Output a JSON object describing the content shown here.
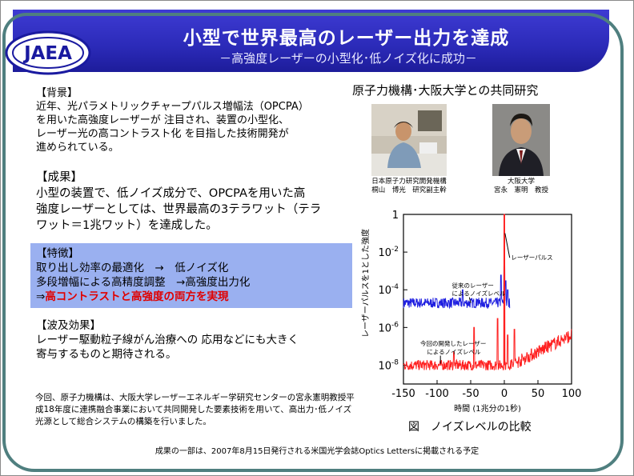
{
  "header": {
    "title": "小型で世界最高のレーザー出力を達成",
    "subtitle": "－高強度レーザーの小型化･低ノイズ化に成功－",
    "logo_text": "JAEA"
  },
  "background": {
    "heading": "【背景】",
    "lines": [
      "近年、光パラメトリックチャープパルス増幅法（OPCPA）",
      "を用いた高強度レーザーが 注目され、装置の小型化、",
      "レーザー光の高コントラスト化 を目指した技術開発が",
      "進められている。"
    ]
  },
  "results": {
    "heading": "【成果】",
    "lines": [
      "小型の装置で、低ノイズ成分で、OPCPAを用いた高",
      "強度レーザーとしては、世界最高の3テラワット（テラ",
      "ワット＝1兆ワット）を達成した。"
    ]
  },
  "features": {
    "heading": "【特徴】",
    "line1": "取り出し効率の最適化　→　低ノイズ化",
    "line2": "多段増幅による高精度調整　→高強度出力化",
    "line3_arrow": "⇒",
    "line3": "高コントラストと高強度の両方を実現"
  },
  "impact": {
    "heading": "【波及効果】",
    "lines": [
      "レーザー駆動粒子線がん治療への 応用などにも大きく",
      "寄与するものと期待される。"
    ]
  },
  "bottom_text": "今回、原子力機構は、大阪大学レーザーエネルギー学研究センターの宮永憲明教授平成18年度に連携融合事業において共同開発した要素技術を用いて、高出力･低ノイズ光源として総合システムの構築を行いました。",
  "collab": {
    "title": "原子力機構･大阪大学との共同研究",
    "person1": {
      "line1": "日本原子力研究開発機構",
      "line2": "桐山　博光　研究副主幹"
    },
    "person2": {
      "line1": "大阪大学",
      "line2": "宮永　憲明　教授"
    }
  },
  "figure_caption": "図　ノイズレベルの比較",
  "footer": "成果の一部は、2007年8月15日発行される米国光学会誌Optics Lettersに掲載される予定",
  "chart_data": {
    "type": "line",
    "xlabel": "時間 (1兆分の1秒)",
    "ylabel": "レーザーパルスを1とした強度",
    "xlim": [
      -150,
      100
    ],
    "ylim": [
      1e-09,
      1
    ],
    "log_y": true,
    "x_ticks": [
      "-150",
      "-100",
      "-50",
      "0",
      "50",
      "100"
    ],
    "y_ticks": [
      {
        "base": "1",
        "exp": ""
      },
      {
        "base": "10",
        "exp": "-2"
      },
      {
        "base": "10",
        "exp": "-4"
      },
      {
        "base": "10",
        "exp": "-6"
      },
      {
        "base": "10",
        "exp": "-8"
      }
    ],
    "annotations": {
      "pulse": "レーザーパルス",
      "old1": "従来のレーザー",
      "old2": "によるノイズレベル",
      "new1": "今回の開発したレーザー",
      "new2": "によるノイズレベル"
    },
    "series": [
      {
        "color": "#1f1fe0",
        "baseline": 2e-05,
        "peaks": [
          [
            -62,
            0.0001
          ],
          [
            -40,
            3e-05
          ],
          [
            -5,
            0.0006
          ],
          [
            0,
            0.01
          ],
          [
            2,
            0.0003
          ],
          [
            5,
            0.0001
          ]
        ]
      },
      {
        "color": "#ff2020",
        "baseline": 1e-08,
        "peaks": [
          [
            -75,
            5e-08
          ],
          [
            -45,
            1e-06
          ],
          [
            -10,
            3e-06
          ],
          [
            0,
            1
          ],
          [
            5,
            4e-07
          ],
          [
            15,
            8e-07
          ]
        ]
      }
    ]
  }
}
